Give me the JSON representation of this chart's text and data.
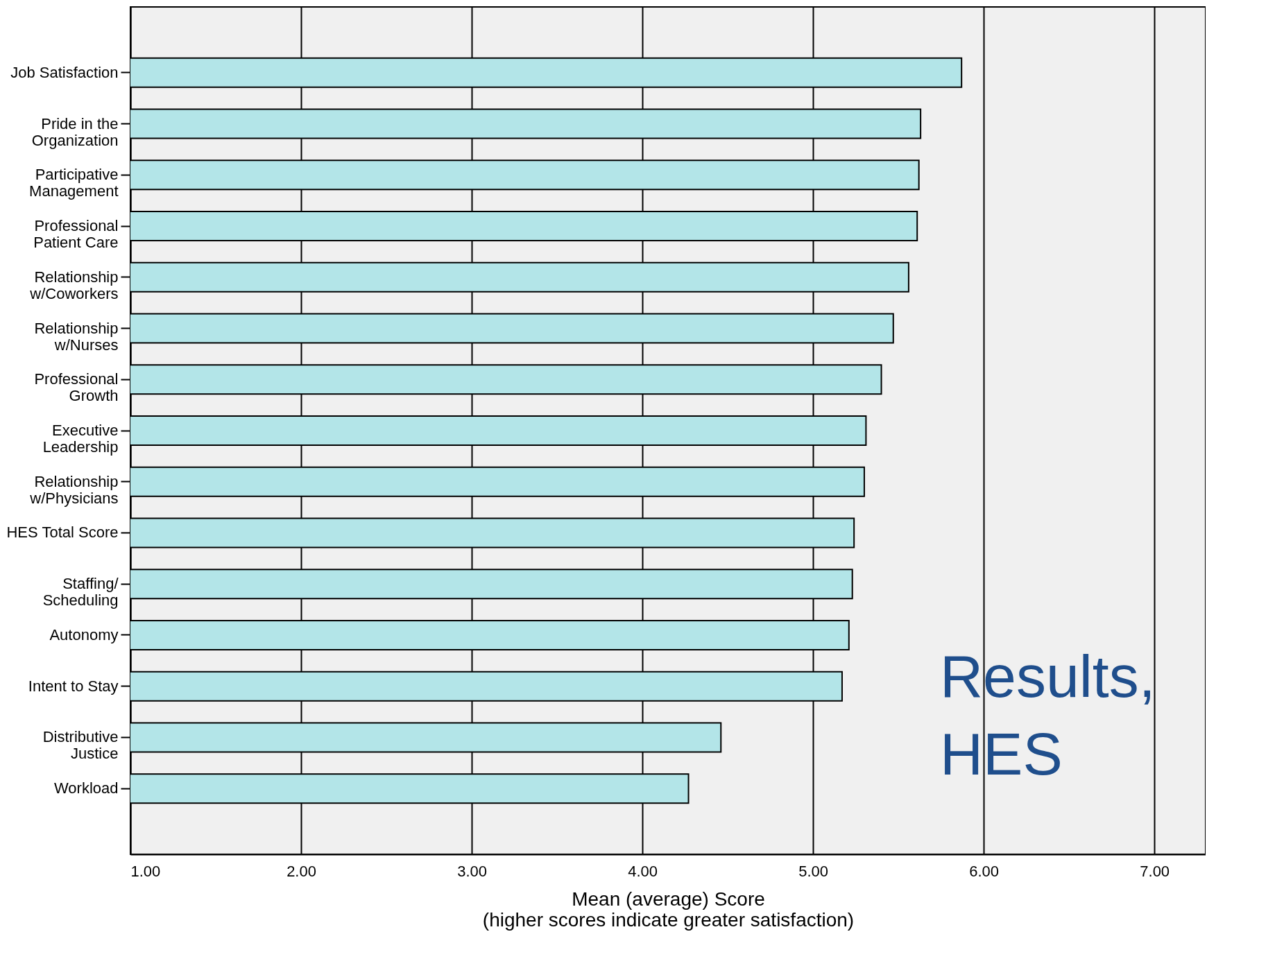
{
  "chart_data": {
    "type": "bar",
    "orientation": "horizontal",
    "xlabel": "Mean (average) Score\n(higher scores indicate greater satisfaction)",
    "categories": [
      "Job Satisfaction",
      "Pride in the\nOrganization",
      "Participative\nManagement",
      "Professional\nPatient Care",
      "Relationship\nw/Coworkers",
      "Relationship\nw/Nurses",
      "Professional\nGrowth",
      "Executive\nLeadership",
      "Relationship\nw/Physicians",
      "HES Total Score",
      "Staffing/\nScheduling",
      "Autonomy",
      "Intent to Stay",
      "Distributive\nJustice",
      "Workload"
    ],
    "values": [
      5.87,
      5.63,
      5.62,
      5.61,
      5.56,
      5.47,
      5.4,
      5.31,
      5.3,
      5.24,
      5.23,
      5.21,
      5.17,
      4.46,
      4.27
    ],
    "color": "#b3e5e8",
    "xlim": [
      1,
      7.3
    ],
    "xticks": [
      {
        "value": 1,
        "label": "1.00"
      },
      {
        "value": 2,
        "label": "2.00"
      },
      {
        "value": 3,
        "label": "3.00"
      },
      {
        "value": 4,
        "label": "4.00"
      },
      {
        "value": 5,
        "label": "5.00"
      },
      {
        "value": 6,
        "label": "6.00"
      },
      {
        "value": 7,
        "label": "7.00"
      }
    ],
    "grid": "x",
    "annotations": [
      "Results,\nHES"
    ]
  }
}
